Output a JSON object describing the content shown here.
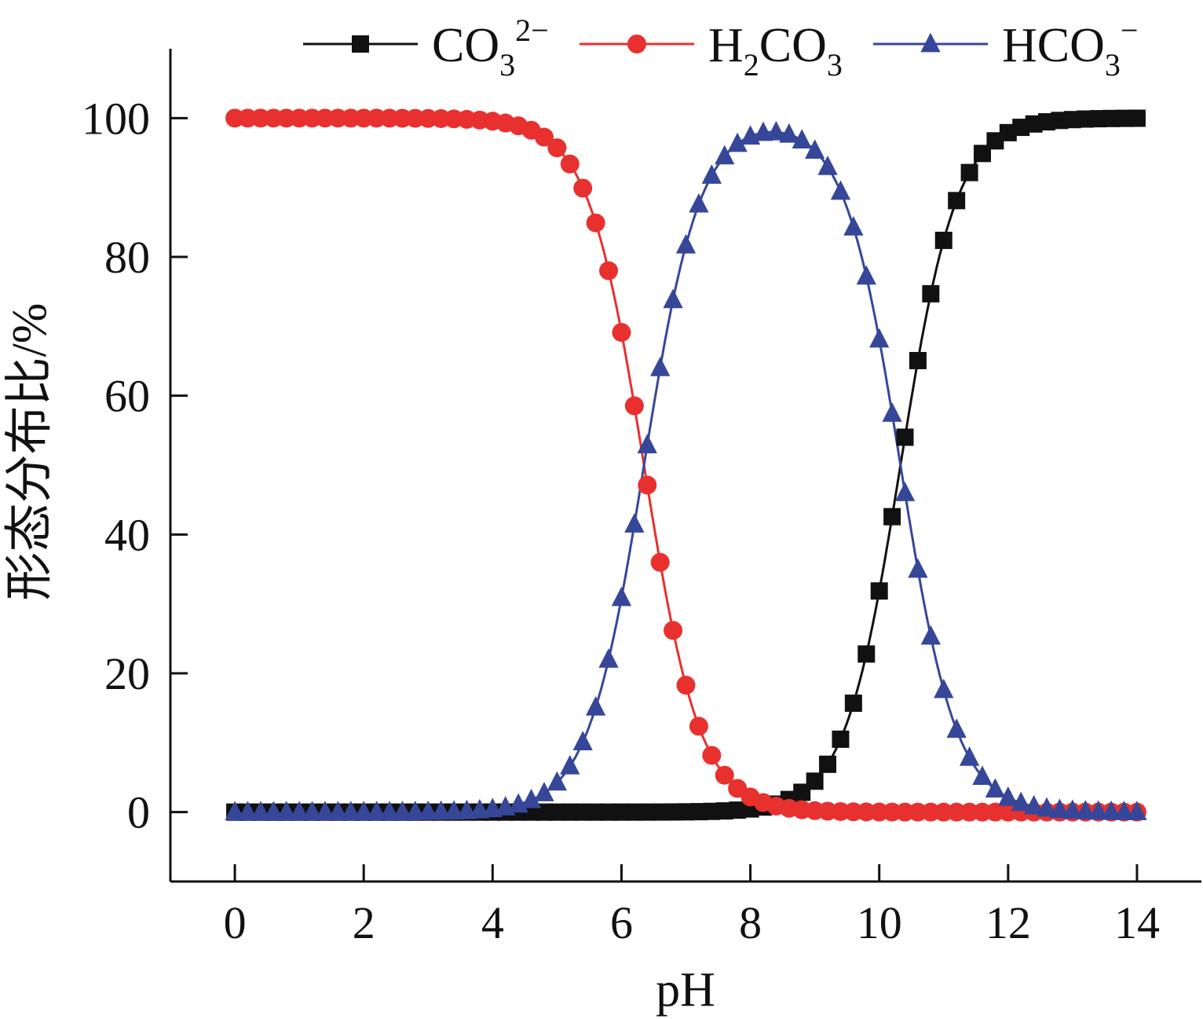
{
  "chart_data": {
    "type": "line",
    "xlabel": "pH",
    "ylabel": "形态分布比/%",
    "xlim": [
      -1,
      15
    ],
    "ylim": [
      -10,
      110
    ],
    "xticks": [
      0,
      2,
      4,
      6,
      8,
      10,
      12,
      14
    ],
    "yticks": [
      0,
      20,
      40,
      60,
      80,
      100
    ],
    "grid": false,
    "legend_position": "top",
    "pKa1": 6.35,
    "pKa2": 10.33,
    "x": {
      "start": 0,
      "end": 14,
      "step": 0.2
    },
    "series": [
      {
        "name": "CO32−",
        "legend": {
          "base": "CO",
          "sub": "3",
          "sup": "2−"
        },
        "color": "#111111",
        "marker": "square",
        "points": [
          [
            0,
            0
          ],
          [
            4,
            0.01
          ],
          [
            6,
            0.0
          ],
          [
            8,
            0.5
          ],
          [
            8.6,
            1.8
          ],
          [
            9.0,
            4.5
          ],
          [
            9.4,
            11
          ],
          [
            9.6,
            17
          ],
          [
            9.8,
            24.5
          ],
          [
            10.0,
            34.5
          ],
          [
            10.2,
            45.5
          ],
          [
            10.4,
            57
          ],
          [
            10.6,
            68
          ],
          [
            10.8,
            77.5
          ],
          [
            11.0,
            84.5
          ],
          [
            11.2,
            89.8
          ],
          [
            11.4,
            93.5
          ],
          [
            11.6,
            96
          ],
          [
            12.0,
            98.4
          ],
          [
            13.0,
            99.8
          ],
          [
            14.0,
            100
          ]
        ]
      },
      {
        "name": "H2CO3",
        "legend": {
          "base": "H",
          "sub": "2",
          "tail": "CO",
          "sub2": "3"
        },
        "color": "#e8302f",
        "marker": "circle",
        "points": [
          [
            0,
            100
          ],
          [
            4.0,
            99.5
          ],
          [
            4.6,
            98
          ],
          [
            5.0,
            95.5
          ],
          [
            5.2,
            93.5
          ],
          [
            5.4,
            90
          ],
          [
            5.6,
            85
          ],
          [
            5.8,
            78
          ],
          [
            6.0,
            69
          ],
          [
            6.2,
            58
          ],
          [
            6.4,
            47
          ],
          [
            6.6,
            35.5
          ],
          [
            6.8,
            26
          ],
          [
            7.0,
            18
          ],
          [
            7.2,
            12
          ],
          [
            7.4,
            8
          ],
          [
            7.6,
            5
          ],
          [
            7.8,
            3.2
          ],
          [
            8.0,
            2
          ],
          [
            8.4,
            0.9
          ],
          [
            9.0,
            0.3
          ],
          [
            14.0,
            0
          ]
        ]
      },
      {
        "name": "HCO3−",
        "legend": {
          "base": "HCO",
          "sub": "3",
          "sup": "−"
        },
        "color": "#36479a",
        "marker": "triangle",
        "points": [
          [
            0,
            0
          ],
          [
            4.0,
            0.5
          ],
          [
            4.6,
            2
          ],
          [
            5.0,
            5
          ],
          [
            5.4,
            10.5
          ],
          [
            5.6,
            15
          ],
          [
            5.8,
            22
          ],
          [
            6.0,
            31
          ],
          [
            6.2,
            41.5
          ],
          [
            6.4,
            53
          ],
          [
            6.6,
            64.5
          ],
          [
            6.8,
            74.5
          ],
          [
            7.0,
            82
          ],
          [
            7.2,
            88
          ],
          [
            7.4,
            92
          ],
          [
            7.6,
            95
          ],
          [
            7.8,
            97
          ],
          [
            8.0,
            97.8
          ],
          [
            8.4,
            98.4
          ],
          [
            8.8,
            97
          ],
          [
            9.0,
            95.5
          ],
          [
            9.2,
            93
          ],
          [
            9.4,
            89
          ],
          [
            9.6,
            83
          ],
          [
            9.8,
            75.5
          ],
          [
            10.0,
            65.5
          ],
          [
            10.2,
            54.5
          ],
          [
            10.4,
            43
          ],
          [
            10.6,
            32
          ],
          [
            10.8,
            22.5
          ],
          [
            11.0,
            15.5
          ],
          [
            11.2,
            10
          ],
          [
            11.4,
            6.5
          ],
          [
            11.6,
            4
          ],
          [
            12.0,
            1.5
          ],
          [
            13.0,
            0.2
          ],
          [
            14.0,
            0
          ]
        ]
      }
    ]
  }
}
